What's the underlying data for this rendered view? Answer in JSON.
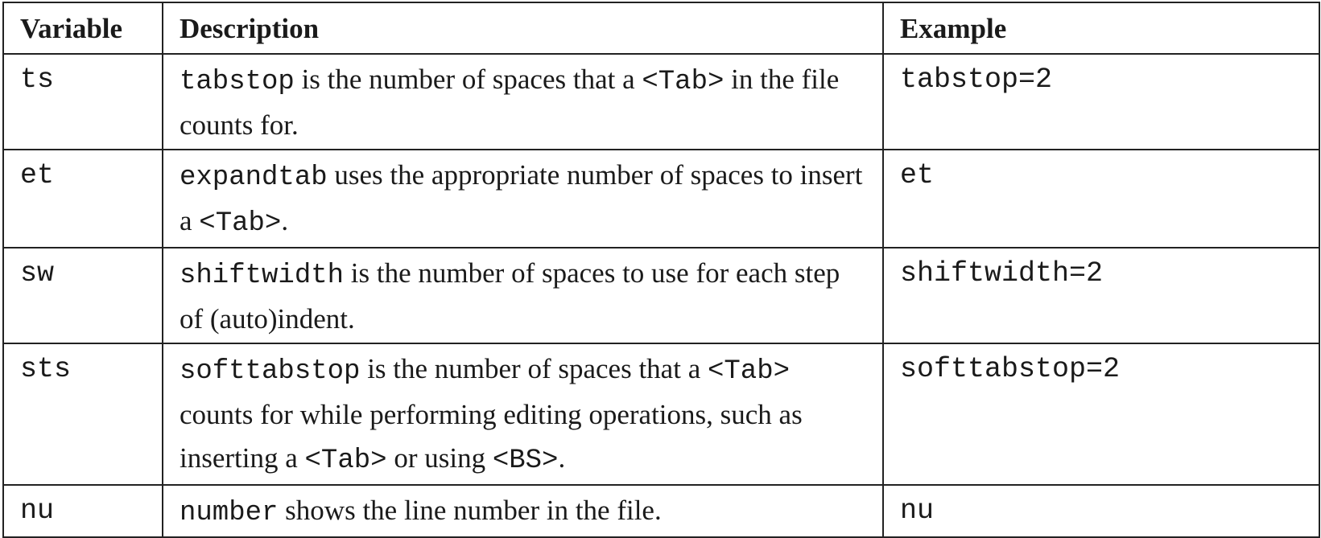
{
  "table": {
    "headers": {
      "variable": "Variable",
      "description": "Description",
      "example": "Example"
    },
    "rows": [
      {
        "variable": "ts",
        "desc_code": "tabstop",
        "desc_text1": " is the number of spaces that a ",
        "desc_code2": "<Tab>",
        "desc_text2": " in the file counts for.",
        "example": "tabstop=2"
      },
      {
        "variable": "et",
        "desc_code": "expandtab",
        "desc_text1": " uses the appropriate number of spaces to insert a ",
        "desc_code2": "<Tab>",
        "desc_text2": ".",
        "example": "et"
      },
      {
        "variable": "sw",
        "desc_code": "shiftwidth",
        "desc_text1": " is the number of spaces to use for each step of (auto)indent.",
        "example": "shiftwidth=2"
      },
      {
        "variable": "sts",
        "desc_code": "softtabstop",
        "desc_text1": " is the number of spaces that a ",
        "desc_code2": "<Tab>",
        "desc_text2": " counts for while performing editing operations, such as inserting a ",
        "desc_code3": "<Tab>",
        "desc_text3": " or using ",
        "desc_code4": "<BS>",
        "desc_text4": ".",
        "example": "softtabstop=2"
      },
      {
        "variable": "nu",
        "desc_code": "number",
        "desc_text1": " shows the line number in the file.",
        "example": "nu"
      }
    ]
  }
}
